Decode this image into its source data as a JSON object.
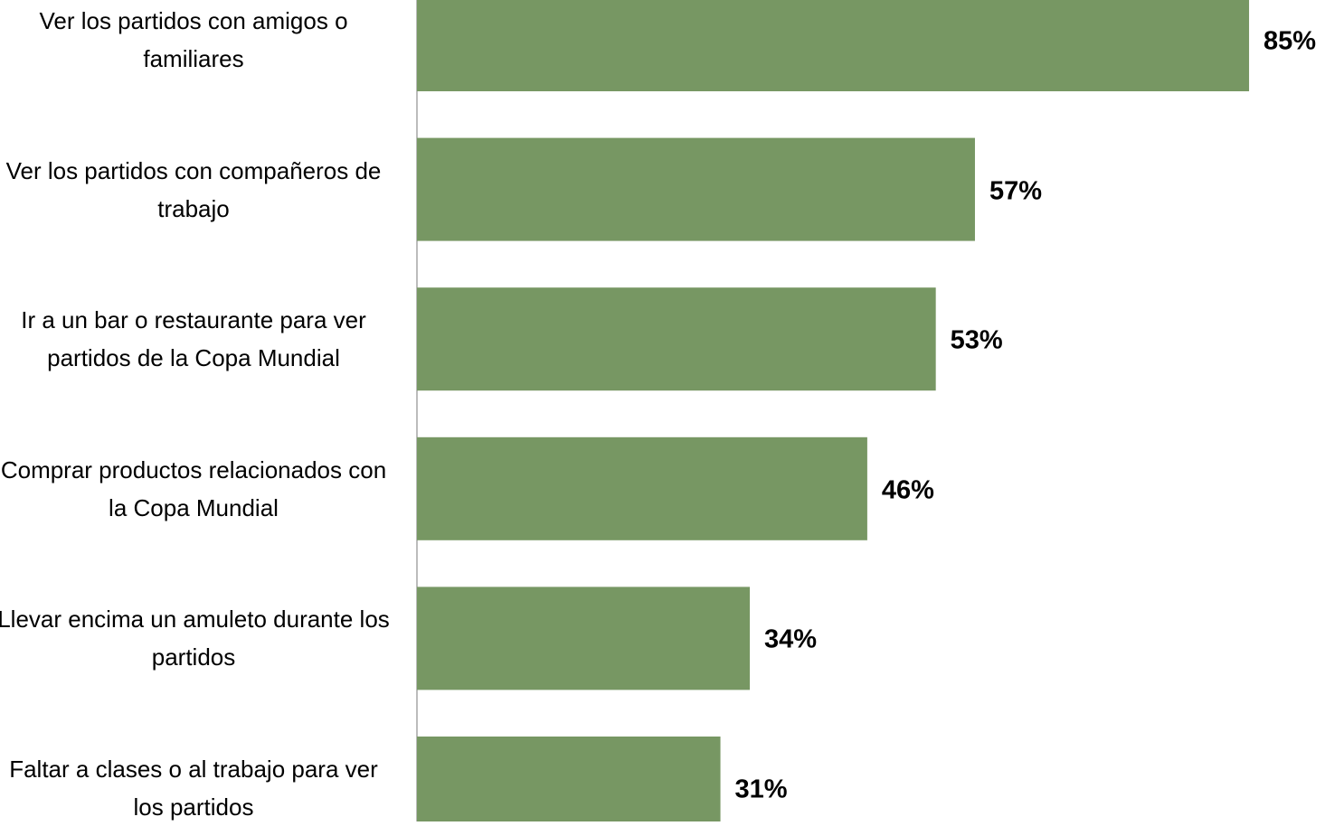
{
  "chart_data": {
    "type": "bar",
    "orientation": "horizontal",
    "categories": [
      "Ver los partidos con amigos o familiares",
      "Ver los partidos con compañeros de trabajo",
      "Ir a un bar o restaurante para ver partidos de la Copa Mundial",
      "Comprar productos relacionados con la Copa Mundial",
      "Llevar encima un amuleto durante los partidos",
      "Faltar a clases o al trabajo para ver los partidos"
    ],
    "values": [
      85,
      57,
      53,
      46,
      34,
      31
    ],
    "value_labels": [
      "85%",
      "57%",
      "53%",
      "46%",
      "34%",
      "31%"
    ],
    "color": "#779763"
  }
}
